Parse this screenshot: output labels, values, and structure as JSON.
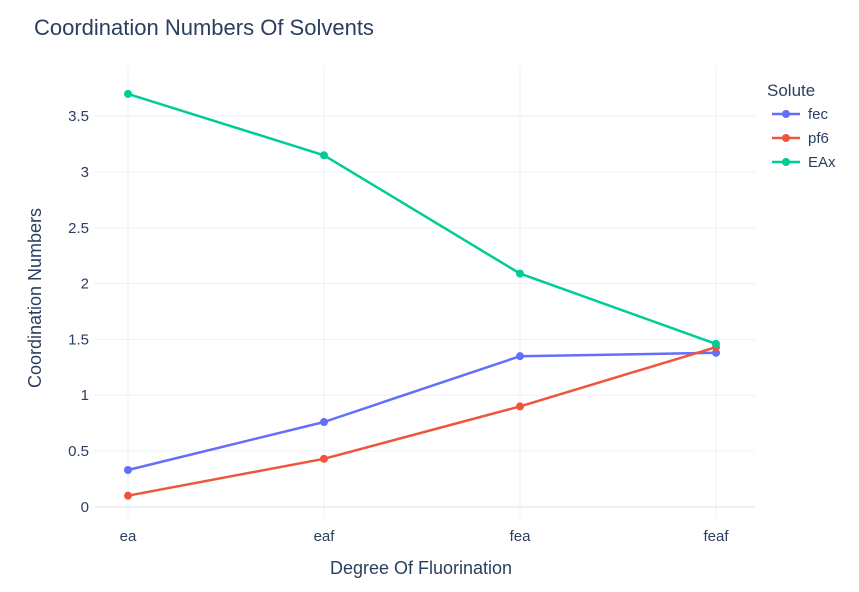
{
  "chart_data": {
    "type": "line",
    "title": "Coordination Numbers Of Solvents",
    "xlabel": "Degree Of Fluorination",
    "ylabel": "Coordination Numbers",
    "categories": [
      "ea",
      "eaf",
      "fea",
      "feaf"
    ],
    "ylim": [
      -0.1,
      3.95
    ],
    "yticks": [
      0,
      0.5,
      1,
      1.5,
      2,
      2.5,
      3,
      3.5
    ],
    "ytick_labels": [
      "0",
      "0.5",
      "1",
      "1.5",
      "2",
      "2.5",
      "3",
      "3.5"
    ],
    "grid": true,
    "legend": {
      "title": "Solute",
      "placement": "top-right"
    },
    "series": [
      {
        "name": "fec",
        "color": "#636efa",
        "values": [
          0.33,
          0.76,
          1.35,
          1.38
        ]
      },
      {
        "name": "pf6",
        "color": "#ef553b",
        "values": [
          0.1,
          0.43,
          0.9,
          1.43
        ]
      },
      {
        "name": "EAx",
        "color": "#00cc96",
        "values": [
          3.7,
          3.15,
          2.09,
          1.46
        ]
      }
    ]
  }
}
